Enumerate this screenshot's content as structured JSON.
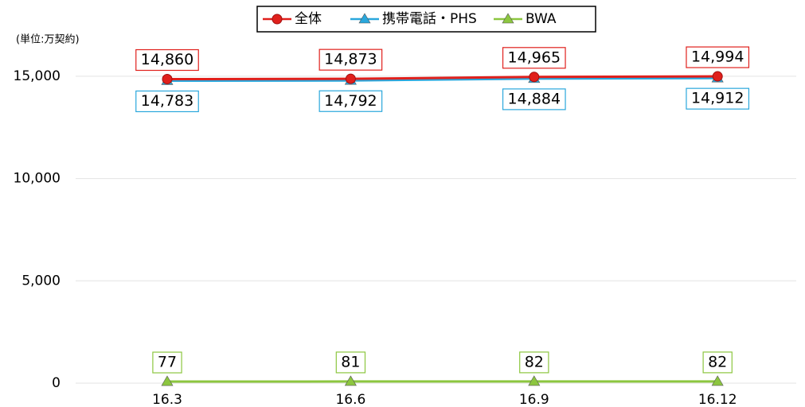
{
  "chart_data": {
    "type": "line",
    "y_axis_label": "(単位:万契約)",
    "categories": [
      "16.3",
      "16.6",
      "16.9",
      "16.12"
    ],
    "series": [
      {
        "name": "全体",
        "color": "#e0201c",
        "marker": "circle",
        "values": [
          14860,
          14873,
          14965,
          14994
        ],
        "value_labels": [
          "14,860",
          "14,873",
          "14,965",
          "14,994"
        ]
      },
      {
        "name": "携帯電話・PHS",
        "color": "#2aa7dc",
        "marker": "triangle",
        "values": [
          14783,
          14792,
          14884,
          14912
        ],
        "value_labels": [
          "14,783",
          "14,792",
          "14,884",
          "14,912"
        ]
      },
      {
        "name": "BWA",
        "color": "#8cc63f",
        "marker": "triangle",
        "values": [
          77,
          81,
          82,
          82
        ]
      }
    ],
    "ylim": [
      0,
      16000
    ],
    "yticks": [
      0,
      {
        "value": 5000,
        "label": "5,000"
      },
      {
        "value": 10000,
        "label": "10,000"
      },
      {
        "value": 15000,
        "label": "15,000"
      }
    ],
    "grid": true,
    "legend": "top"
  }
}
